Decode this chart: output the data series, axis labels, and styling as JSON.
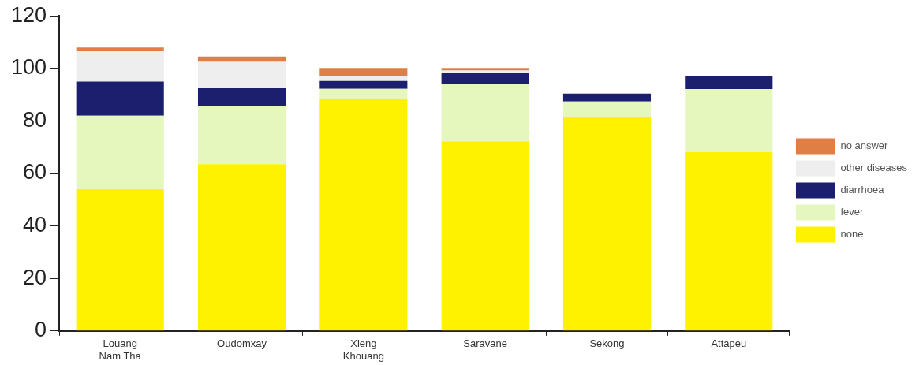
{
  "chart_data": {
    "type": "bar",
    "stacked": true,
    "categories": [
      "Louang Nam Tha",
      "Oudomxay",
      "Xieng Khouang",
      "Saravane",
      "Sekong",
      "Attapeu"
    ],
    "series": [
      {
        "name": "none",
        "color": "#fff200",
        "values": [
          54,
          63.5,
          88.4,
          72.2,
          81.4,
          68.1
        ]
      },
      {
        "name": "fever",
        "color": "#e6f7bd",
        "values": [
          28,
          22,
          3.8,
          22,
          6,
          24
        ]
      },
      {
        "name": "diarrhoea",
        "color": "#1c1f6e",
        "values": [
          13,
          7,
          3,
          4,
          3,
          5
        ]
      },
      {
        "name": "other diseases",
        "color": "#eeeeee",
        "values": [
          11.5,
          10,
          2,
          1,
          0,
          0
        ]
      },
      {
        "name": "no answer",
        "color": "#e07f45",
        "values": [
          1.5,
          2,
          3,
          1,
          0,
          0
        ]
      }
    ],
    "ylim": [
      0,
      120
    ],
    "yticks": [
      0,
      20,
      40,
      60,
      80,
      100,
      120
    ],
    "grid": false,
    "legend": "right"
  }
}
